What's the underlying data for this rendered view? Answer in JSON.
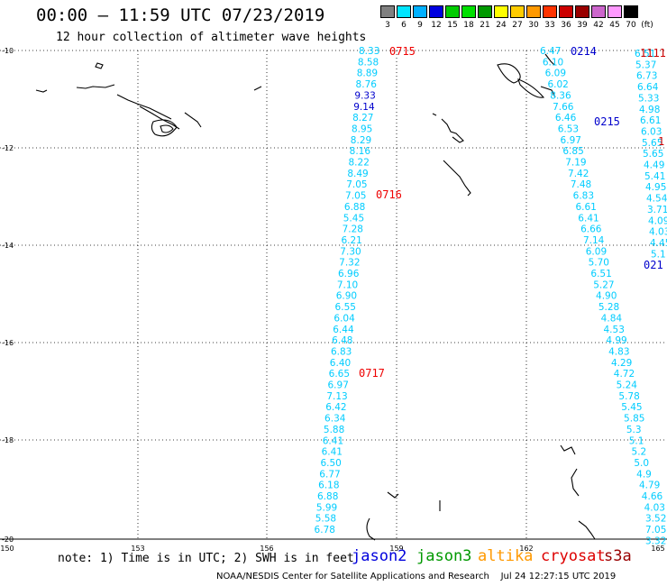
{
  "header": {
    "title": "00:00 – 11:59 UTC 07/23/2019",
    "subtitle": "12 hour collection of altimeter wave heights"
  },
  "scale": {
    "unit": "(ft)",
    "items": [
      {
        "label": "3",
        "color": "#808080"
      },
      {
        "label": "6",
        "color": "#00e5ff"
      },
      {
        "label": "9",
        "color": "#00b0ff"
      },
      {
        "label": "12",
        "color": "#0000e0"
      },
      {
        "label": "15",
        "color": "#00cc00"
      },
      {
        "label": "18",
        "color": "#00e000"
      },
      {
        "label": "21",
        "color": "#009900"
      },
      {
        "label": "24",
        "color": "#ffff00"
      },
      {
        "label": "27",
        "color": "#ffcc00"
      },
      {
        "label": "30",
        "color": "#ff9900"
      },
      {
        "label": "33",
        "color": "#ff3300"
      },
      {
        "label": "36",
        "color": "#cc0000"
      },
      {
        "label": "39",
        "color": "#990000"
      },
      {
        "label": "42",
        "color": "#cc66cc"
      },
      {
        "label": "45",
        "color": "#ff99ff"
      },
      {
        "label": "70",
        "color": "#000000"
      }
    ]
  },
  "axes": {
    "lon_ticks": [
      "150",
      "153",
      "156",
      "159",
      "162",
      "165"
    ],
    "lat_ticks": [
      "-10",
      "-12",
      "-14",
      "-16",
      "-18",
      "-20"
    ]
  },
  "tracks": {
    "track_a": {
      "time_labels": [
        "0715",
        "0716",
        "0717"
      ],
      "values": [
        "8.33",
        "8.58",
        "8.89",
        "8.76",
        "9.33",
        "9.14",
        "8.27",
        "8.95",
        "8.29",
        "8.16",
        "8.22",
        "8.49",
        "7.05",
        "7.05",
        "6.88",
        "5.45",
        "7.28",
        "6.21",
        "7.30",
        "7.32",
        "6.96",
        "7.10",
        "6.90",
        "6.55",
        "6.04",
        "6.44",
        "6.48",
        "6.83",
        "6.40",
        "6.65",
        "6.97",
        "7.13",
        "6.42",
        "6.34",
        "5.88",
        "6.41",
        "6.41",
        "6.50",
        "6.77",
        "6.18",
        "6.88",
        "5.99",
        "5.58",
        "6.78"
      ]
    },
    "track_b": {
      "time_labels": [
        "0214",
        "0215",
        "021"
      ],
      "values": [
        "6.47",
        "6.10",
        "6.09",
        "6.02",
        "8.36",
        "7.66",
        "6.46",
        "6.53",
        "6.97",
        "6.85",
        "7.19",
        "7.42",
        "7.48",
        "6.83",
        "6.61",
        "6.41",
        "6.66",
        "7.14",
        "6.09",
        "5.70",
        "6.51",
        "5.27",
        "4.90",
        "5.28",
        "4.84",
        "4.53",
        "4.99",
        "4.83",
        "4.29",
        "4.72",
        "5.24",
        "5.78",
        "5.45",
        "5.85",
        "5.3",
        "5.1",
        "5.2",
        "5.0",
        "4.9",
        "4.79",
        "4.66",
        "4.03",
        "3.52",
        "7.05",
        "3.32"
      ]
    },
    "track_c": {
      "values": [
        "6.51",
        "5.37",
        "6.73",
        "6.64",
        "5.33",
        "4.98",
        "6.61",
        "6.03",
        "5.65",
        "5.65",
        "4.49",
        "5.41",
        "4.95",
        "4.54",
        "3.71",
        "4.09",
        "4.03",
        "4.45",
        "5.1"
      ]
    },
    "edge_labels": [
      "1111",
      "1"
    ]
  },
  "footer": {
    "note": "note: 1) Time is in UTC; 2) SWH is in feet",
    "satellites": [
      {
        "name": "jason2",
        "color": "#0000dd"
      },
      {
        "name": "jason3",
        "color": "#009900"
      },
      {
        "name": "altika",
        "color": "#ff9900"
      },
      {
        "name": "cryosat",
        "color": "#dd0000"
      },
      {
        "name": "s3a",
        "color": "#990000"
      }
    ],
    "credit": "NOAA/NESDIS Center for Satellite Applications and Research",
    "timestamp": "Jul 24 12:27:15 UTC 2019"
  }
}
